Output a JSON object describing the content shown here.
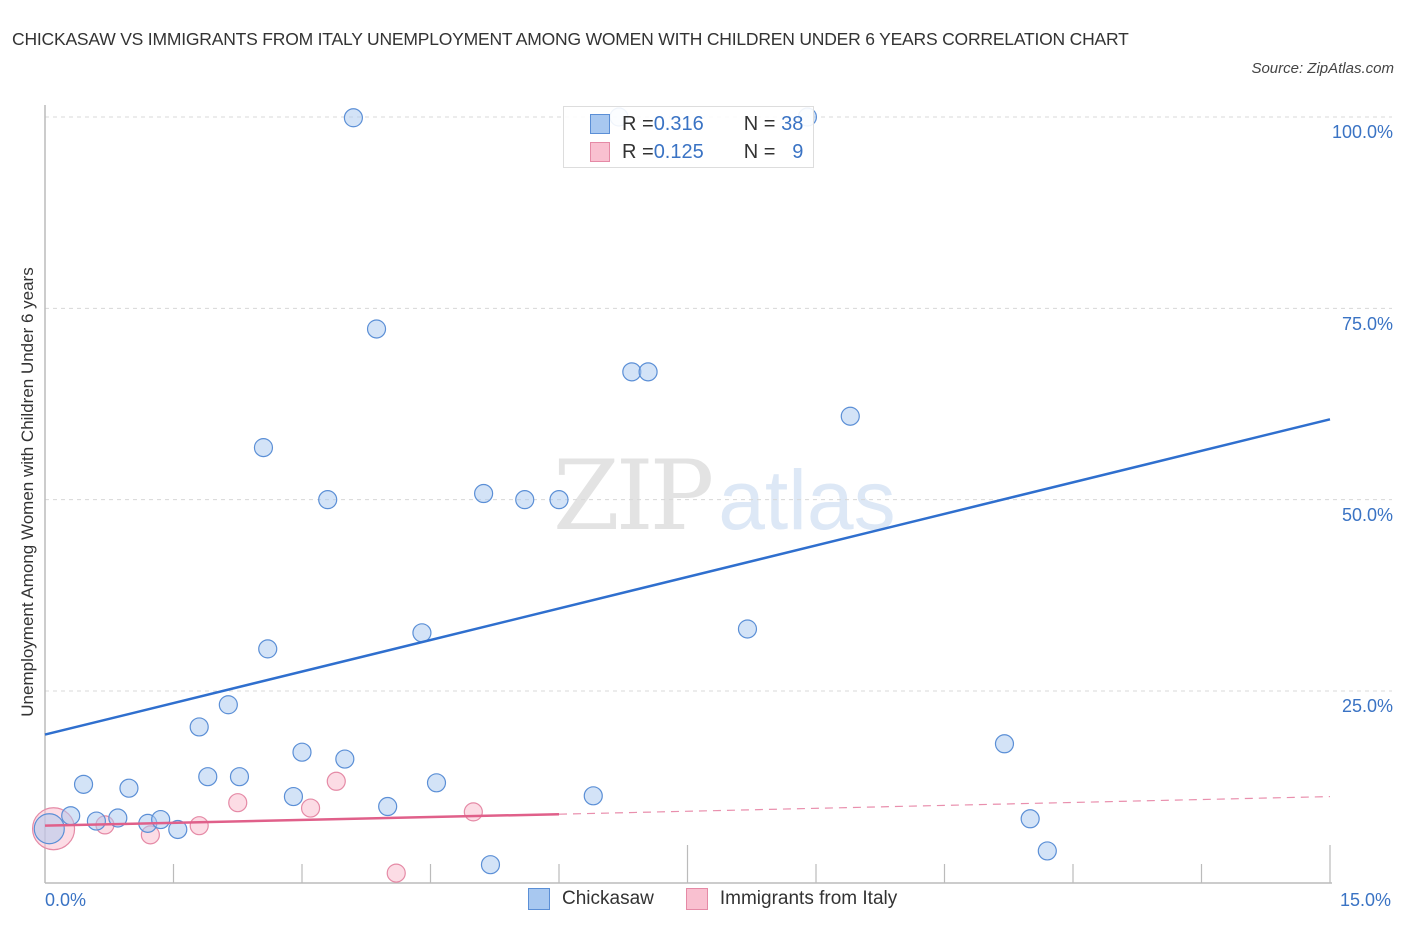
{
  "header": {
    "title": "CHICKASAW VS IMMIGRANTS FROM ITALY UNEMPLOYMENT AMONG WOMEN WITH CHILDREN UNDER 6 YEARS CORRELATION CHART",
    "source": "Source: ZipAtlas.com"
  },
  "watermark": {
    "zip": "ZIP",
    "atlas": "atlas"
  },
  "legend": {
    "rows": [
      {
        "r_label": "R = ",
        "r_value": "0.316",
        "n_label": "N = ",
        "n_value": "38",
        "color": "#a8c8f0",
        "border": "#5b8fd6"
      },
      {
        "r_label": "R = ",
        "r_value": "0.125",
        "n_label": "N = ",
        "n_value": "9",
        "color": "#f9c0d0",
        "border": "#e58aa6"
      }
    ]
  },
  "bottom_legend": [
    {
      "label": "Chickasaw",
      "color": "#a8c8f0",
      "border": "#5b8fd6"
    },
    {
      "label": "Immigrants from Italy",
      "color": "#f9c0d0",
      "border": "#e58aa6"
    }
  ],
  "axes": {
    "ylabel": "Unemployment Among Women with Children Under 6 years",
    "yticks": [
      "100.0%",
      "75.0%",
      "50.0%",
      "25.0%"
    ],
    "xticks": [
      "0.0%",
      "15.0%"
    ]
  },
  "chart_data": {
    "type": "scatter",
    "title": "Chickasaw vs Immigrants from Italy Unemployment Among Women with Children Under 6 Years Correlation Chart",
    "xlabel": "",
    "ylabel": "Unemployment Among Women with Children Under 6 years",
    "xlim": [
      0,
      15
    ],
    "ylim": [
      0,
      100
    ],
    "x_unit": "%",
    "y_unit": "%",
    "grid": {
      "horizontal_dashed": [
        25,
        50,
        75,
        100
      ]
    },
    "legend_position": "top-center (stats) and bottom (series names)",
    "series": [
      {
        "name": "Chickasaw",
        "color": "#a8c8f0",
        "stroke": "#5b8fd6",
        "R": 0.316,
        "N": 38,
        "trendline": {
          "x": [
            0,
            15
          ],
          "y": [
            19.3,
            60.5
          ],
          "color": "#2f6fce",
          "style": "solid"
        },
        "points": [
          [
            0.05,
            7.0
          ],
          [
            0.3,
            8.7
          ],
          [
            0.45,
            12.8
          ],
          [
            0.6,
            8.0
          ],
          [
            0.85,
            8.4
          ],
          [
            0.98,
            12.3
          ],
          [
            1.2,
            7.7
          ],
          [
            1.35,
            8.2
          ],
          [
            1.55,
            6.9
          ],
          [
            1.8,
            20.3
          ],
          [
            1.9,
            13.8
          ],
          [
            2.14,
            23.2
          ],
          [
            2.27,
            13.8
          ],
          [
            2.55,
            56.8
          ],
          [
            2.6,
            30.5
          ],
          [
            2.9,
            11.2
          ],
          [
            3.0,
            17.0
          ],
          [
            3.3,
            50.0
          ],
          [
            3.5,
            16.1
          ],
          [
            3.6,
            99.9
          ],
          [
            3.87,
            72.3
          ],
          [
            4.0,
            9.9
          ],
          [
            4.4,
            32.6
          ],
          [
            4.57,
            13.0
          ],
          [
            5.12,
            50.8
          ],
          [
            5.2,
            2.3
          ],
          [
            5.6,
            50.0
          ],
          [
            6.0,
            50.0
          ],
          [
            6.4,
            11.3
          ],
          [
            6.7,
            100.0
          ],
          [
            6.85,
            66.7
          ],
          [
            7.04,
            66.7
          ],
          [
            8.9,
            100.0
          ],
          [
            8.2,
            33.1
          ],
          [
            9.4,
            60.9
          ],
          [
            11.2,
            18.1
          ],
          [
            11.5,
            8.3
          ],
          [
            11.7,
            4.1
          ]
        ]
      },
      {
        "name": "Immigrants from Italy",
        "color": "#f9c0d0",
        "stroke": "#e58aa6",
        "R": 0.125,
        "N": 9,
        "trendline": {
          "solid": {
            "x": [
              0,
              6.0
            ],
            "y": [
              7.4,
              8.9
            ]
          },
          "dashed": {
            "x": [
              6.0,
              15
            ],
            "y": [
              8.9,
              11.2
            ]
          },
          "color": "#e0608a"
        },
        "points": [
          [
            0.1,
            7.0
          ],
          [
            0.7,
            7.5
          ],
          [
            1.23,
            6.2
          ],
          [
            1.8,
            7.4
          ],
          [
            2.25,
            10.4
          ],
          [
            3.1,
            9.7
          ],
          [
            3.4,
            13.2
          ],
          [
            4.1,
            1.2
          ],
          [
            5.0,
            9.2
          ]
        ]
      }
    ]
  }
}
